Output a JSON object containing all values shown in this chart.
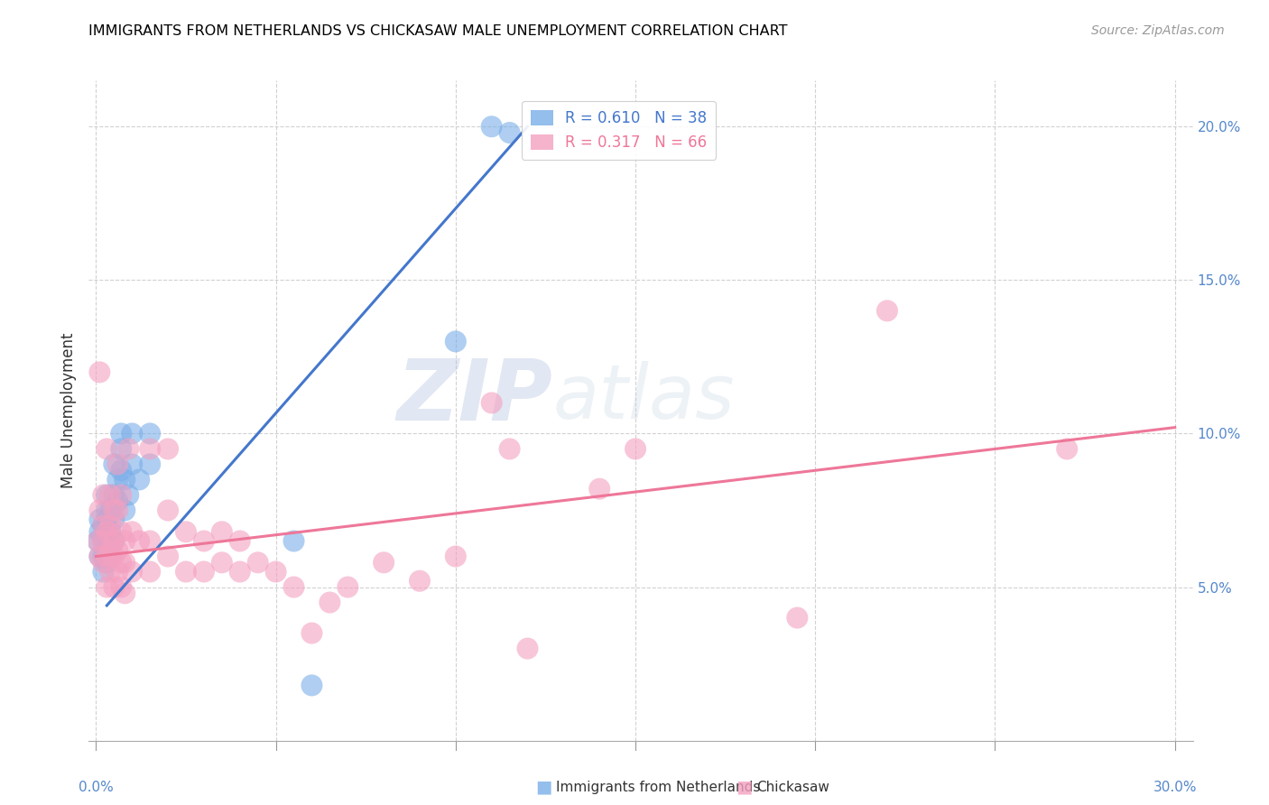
{
  "title": "IMMIGRANTS FROM NETHERLANDS VS CHICKASAW MALE UNEMPLOYMENT CORRELATION CHART",
  "source": "Source: ZipAtlas.com",
  "ylabel": "Male Unemployment",
  "y_ticks": [
    0.05,
    0.1,
    0.15,
    0.2
  ],
  "y_tick_labels": [
    "5.0%",
    "10.0%",
    "15.0%",
    "20.0%"
  ],
  "xlim": [
    -0.002,
    0.305
  ],
  "ylim": [
    0.0,
    0.215
  ],
  "legend_r1": "0.610",
  "legend_n1": "38",
  "legend_r2": "0.317",
  "legend_n2": "66",
  "blue_color": "#7AAEE8",
  "pink_color": "#F4A0C0",
  "blue_line_color": "#4477CC",
  "pink_line_color": "#EE7799",
  "watermark_zip": "ZIP",
  "watermark_atlas": "atlas",
  "blue_scatter": [
    [
      0.0005,
      0.065
    ],
    [
      0.001,
      0.06
    ],
    [
      0.001,
      0.068
    ],
    [
      0.001,
      0.072
    ],
    [
      0.002,
      0.055
    ],
    [
      0.002,
      0.06
    ],
    [
      0.002,
      0.065
    ],
    [
      0.002,
      0.07
    ],
    [
      0.003,
      0.058
    ],
    [
      0.003,
      0.064
    ],
    [
      0.003,
      0.072
    ],
    [
      0.003,
      0.08
    ],
    [
      0.003,
      0.075
    ],
    [
      0.004,
      0.06
    ],
    [
      0.004,
      0.068
    ],
    [
      0.004,
      0.075
    ],
    [
      0.005,
      0.065
    ],
    [
      0.005,
      0.072
    ],
    [
      0.005,
      0.08
    ],
    [
      0.005,
      0.09
    ],
    [
      0.006,
      0.078
    ],
    [
      0.006,
      0.085
    ],
    [
      0.007,
      0.088
    ],
    [
      0.007,
      0.095
    ],
    [
      0.007,
      0.1
    ],
    [
      0.008,
      0.075
    ],
    [
      0.008,
      0.085
    ],
    [
      0.009,
      0.08
    ],
    [
      0.01,
      0.09
    ],
    [
      0.01,
      0.1
    ],
    [
      0.012,
      0.085
    ],
    [
      0.015,
      0.09
    ],
    [
      0.015,
      0.1
    ],
    [
      0.055,
      0.065
    ],
    [
      0.06,
      0.018
    ],
    [
      0.1,
      0.13
    ],
    [
      0.11,
      0.2
    ],
    [
      0.115,
      0.198
    ]
  ],
  "pink_scatter": [
    [
      0.0005,
      0.065
    ],
    [
      0.001,
      0.06
    ],
    [
      0.001,
      0.075
    ],
    [
      0.001,
      0.12
    ],
    [
      0.002,
      0.058
    ],
    [
      0.002,
      0.065
    ],
    [
      0.002,
      0.07
    ],
    [
      0.002,
      0.08
    ],
    [
      0.003,
      0.05
    ],
    [
      0.003,
      0.06
    ],
    [
      0.003,
      0.068
    ],
    [
      0.003,
      0.095
    ],
    [
      0.004,
      0.055
    ],
    [
      0.004,
      0.062
    ],
    [
      0.004,
      0.07
    ],
    [
      0.004,
      0.08
    ],
    [
      0.005,
      0.05
    ],
    [
      0.005,
      0.06
    ],
    [
      0.005,
      0.065
    ],
    [
      0.005,
      0.075
    ],
    [
      0.006,
      0.055
    ],
    [
      0.006,
      0.062
    ],
    [
      0.006,
      0.075
    ],
    [
      0.006,
      0.09
    ],
    [
      0.007,
      0.05
    ],
    [
      0.007,
      0.058
    ],
    [
      0.007,
      0.068
    ],
    [
      0.007,
      0.08
    ],
    [
      0.008,
      0.048
    ],
    [
      0.008,
      0.058
    ],
    [
      0.008,
      0.065
    ],
    [
      0.009,
      0.095
    ],
    [
      0.01,
      0.055
    ],
    [
      0.01,
      0.068
    ],
    [
      0.012,
      0.065
    ],
    [
      0.015,
      0.055
    ],
    [
      0.015,
      0.065
    ],
    [
      0.015,
      0.095
    ],
    [
      0.02,
      0.06
    ],
    [
      0.02,
      0.075
    ],
    [
      0.02,
      0.095
    ],
    [
      0.025,
      0.055
    ],
    [
      0.025,
      0.068
    ],
    [
      0.03,
      0.055
    ],
    [
      0.03,
      0.065
    ],
    [
      0.035,
      0.058
    ],
    [
      0.035,
      0.068
    ],
    [
      0.04,
      0.055
    ],
    [
      0.04,
      0.065
    ],
    [
      0.045,
      0.058
    ],
    [
      0.05,
      0.055
    ],
    [
      0.055,
      0.05
    ],
    [
      0.06,
      0.035
    ],
    [
      0.065,
      0.045
    ],
    [
      0.07,
      0.05
    ],
    [
      0.08,
      0.058
    ],
    [
      0.09,
      0.052
    ],
    [
      0.1,
      0.06
    ],
    [
      0.11,
      0.11
    ],
    [
      0.115,
      0.095
    ],
    [
      0.12,
      0.03
    ],
    [
      0.14,
      0.082
    ],
    [
      0.15,
      0.095
    ],
    [
      0.195,
      0.04
    ],
    [
      0.22,
      0.14
    ],
    [
      0.27,
      0.095
    ]
  ],
  "blue_line": [
    [
      0.003,
      0.044
    ],
    [
      0.12,
      0.2
    ]
  ],
  "pink_line": [
    [
      0.0,
      0.06
    ],
    [
      0.3,
      0.102
    ]
  ]
}
